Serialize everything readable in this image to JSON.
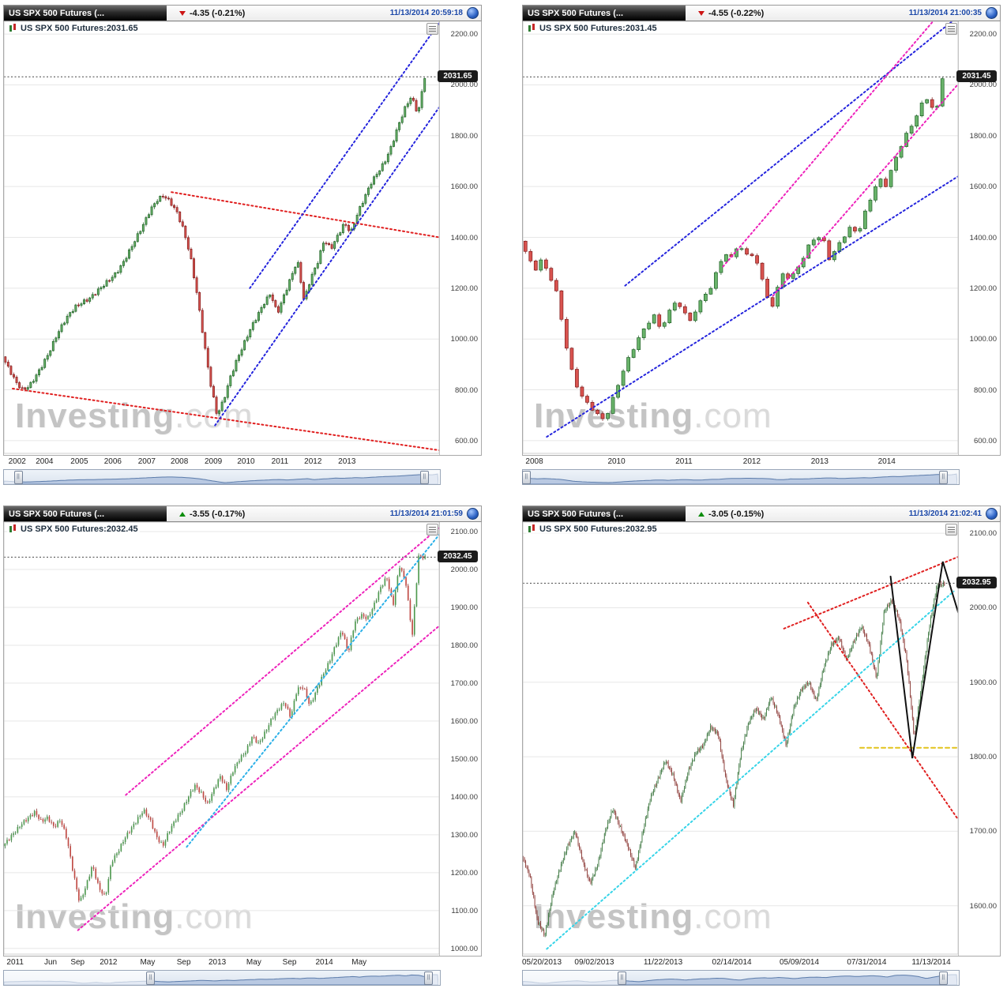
{
  "brand": {
    "watermark_main": "Investing",
    "watermark_suffix": ".com"
  },
  "icons": {
    "globe": "globe-icon",
    "change_up": "triangle-up-icon",
    "change_down": "triangle-down-icon",
    "legend_candles": "candlestick-icon",
    "chart_menu": "chart-menu-icon",
    "nav_handles": "navigator-handle-icon"
  },
  "panels": [
    {
      "title": "US SPX 500 Futures (...",
      "change": "-4.35 (-0.21%)",
      "change_dir": "down",
      "timestamp": "11/13/2014 20:59:18",
      "legend": "US SPX 500 Futures:2031.65",
      "price_tag": "2031.65"
    },
    {
      "title": "US SPX 500 Futures (...",
      "change": "-4.55 (-0.22%)",
      "change_dir": "down",
      "timestamp": "11/13/2014 21:00:35",
      "legend": "US SPX 500 Futures:2031.45",
      "price_tag": "2031.45"
    },
    {
      "title": "US SPX 500 Futures (...",
      "change": "-3.55 (-0.17%)",
      "change_dir": "up",
      "timestamp": "11/13/2014 21:01:59",
      "legend": "US SPX 500 Futures:2032.45",
      "price_tag": "2032.45"
    },
    {
      "title": "US SPX 500 Futures (...",
      "change": "-3.05 (-0.15%)",
      "change_dir": "up",
      "timestamp": "11/13/2014 21:02:41",
      "legend": "US SPX 500 Futures:2032.95",
      "price_tag": "2032.95"
    }
  ],
  "chart_data": [
    {
      "type": "candlestick",
      "series_name": "US SPX 500 Futures",
      "price": 2031.65,
      "domain": [
        550,
        2250
      ],
      "y_ticks": [
        600,
        800,
        1000,
        1200,
        1400,
        1600,
        1800,
        2000,
        2200
      ],
      "x_labels": [
        {
          "text": "2002",
          "pos": 0.012,
          "align": "left"
        },
        {
          "text": "2004",
          "pos": 0.095
        },
        {
          "text": "2005",
          "pos": 0.175
        },
        {
          "text": "2006",
          "pos": 0.252
        },
        {
          "text": "2007",
          "pos": 0.33
        },
        {
          "text": "2008",
          "pos": 0.405
        },
        {
          "text": "2009",
          "pos": 0.483
        },
        {
          "text": "2010",
          "pos": 0.558
        },
        {
          "text": "2011",
          "pos": 0.636
        },
        {
          "text": "2012",
          "pos": 0.712
        },
        {
          "text": "2013",
          "pos": 0.79
        }
      ],
      "close": [
        930,
        880,
        830,
        800,
        815,
        855,
        900,
        950,
        1010,
        1060,
        1100,
        1130,
        1145,
        1160,
        1185,
        1210,
        1235,
        1260,
        1300,
        1350,
        1400,
        1450,
        1505,
        1545,
        1565,
        1540,
        1500,
        1430,
        1330,
        1180,
        1000,
        830,
        700,
        760,
        850,
        920,
        980,
        1040,
        1090,
        1140,
        1180,
        1100,
        1170,
        1240,
        1310,
        1150,
        1240,
        1300,
        1390,
        1355,
        1405,
        1455,
        1420,
        1495,
        1555,
        1615,
        1655,
        1695,
        1755,
        1835,
        1905,
        1955,
        1885,
        2032
      ],
      "candle_count": 150,
      "up_color": "#69b36a",
      "down_color": "#d9534f",
      "trendlines": [
        {
          "name": "descending-resistance",
          "color": "#e01f1f",
          "style": "dotted",
          "points": [
            [
              0.385,
              1578
            ],
            [
              1.07,
              1380
            ]
          ]
        },
        {
          "name": "descending-support",
          "color": "#e01f1f",
          "style": "dotted",
          "points": [
            [
              0.02,
              805
            ],
            [
              1.07,
              545
            ]
          ]
        },
        {
          "name": "rising-channel-upper",
          "color": "#2424dd",
          "style": "dotted",
          "points": [
            [
              0.565,
              1200
            ],
            [
              1.005,
              2255
            ]
          ]
        },
        {
          "name": "rising-channel-lower",
          "color": "#2424dd",
          "style": "dotted",
          "points": [
            [
              0.485,
              660
            ],
            [
              1.02,
              1960
            ]
          ]
        }
      ],
      "nav_range": [
        0.03,
        0.965
      ]
    },
    {
      "type": "candlestick",
      "series_name": "US SPX 500 Futures",
      "price": 2031.45,
      "domain": [
        550,
        2250
      ],
      "y_ticks": [
        600,
        800,
        1000,
        1200,
        1400,
        1600,
        1800,
        2000,
        2200
      ],
      "x_labels": [
        {
          "text": "2008",
          "pos": 0.008,
          "align": "left"
        },
        {
          "text": "2010",
          "pos": 0.217
        },
        {
          "text": "2011",
          "pos": 0.372
        },
        {
          "text": "2012",
          "pos": 0.528
        },
        {
          "text": "2013",
          "pos": 0.684
        },
        {
          "text": "2014",
          "pos": 0.838
        }
      ],
      "close": [
        1385,
        1330,
        1270,
        1310,
        1260,
        1200,
        1060,
        900,
        820,
        760,
        735,
        700,
        682,
        750,
        830,
        900,
        960,
        1010,
        1060,
        1090,
        1040,
        1095,
        1150,
        1115,
        1075,
        1105,
        1180,
        1185,
        1285,
        1325,
        1330,
        1360,
        1345,
        1320,
        1290,
        1160,
        1130,
        1255,
        1245,
        1255,
        1310,
        1365,
        1405,
        1395,
        1310,
        1360,
        1405,
        1440,
        1415,
        1495,
        1570,
        1630,
        1605,
        1685,
        1755,
        1810,
        1860,
        1920,
        1955,
        1870,
        2031
      ],
      "candle_count": 82,
      "up_color": "#69b36a",
      "down_color": "#d9534f",
      "trendlines": [
        {
          "name": "rising-channel-upper-blue",
          "color": "#2424dd",
          "style": "dotted",
          "points": [
            [
              0.235,
              1210
            ],
            [
              0.99,
              2255
            ]
          ]
        },
        {
          "name": "rising-channel-lower-blue",
          "color": "#2424dd",
          "style": "dotted",
          "points": [
            [
              0.055,
              615
            ],
            [
              1.06,
              1705
            ]
          ]
        },
        {
          "name": "rising-channel-upper-magenta",
          "color": "#ee22bb",
          "style": "dotted",
          "points": [
            [
              0.46,
              1285
            ],
            [
              0.945,
              2255
            ]
          ]
        },
        {
          "name": "rising-channel-lower-magenta",
          "color": "#ee22bb",
          "style": "dotted",
          "points": [
            [
              0.575,
              1170
            ],
            [
              1.06,
              2120
            ]
          ]
        }
      ],
      "nav_range": [
        0.005,
        0.965
      ]
    },
    {
      "type": "candlestick",
      "series_name": "US SPX 500 Futures",
      "price": 2032.45,
      "domain": [
        985,
        2125
      ],
      "y_ticks": [
        1000,
        1100,
        1200,
        1300,
        1400,
        1500,
        1600,
        1700,
        1800,
        1900,
        2000,
        2100
      ],
      "x_labels": [
        {
          "text": "2011",
          "pos": 0.008,
          "align": "left"
        },
        {
          "text": "Jun",
          "pos": 0.109
        },
        {
          "text": "Sep",
          "pos": 0.171
        },
        {
          "text": "2012",
          "pos": 0.242
        },
        {
          "text": "May",
          "pos": 0.332
        },
        {
          "text": "Sep",
          "pos": 0.415
        },
        {
          "text": "2013",
          "pos": 0.492
        },
        {
          "text": "May",
          "pos": 0.576
        },
        {
          "text": "Sep",
          "pos": 0.658
        },
        {
          "text": "2014",
          "pos": 0.738
        },
        {
          "text": "May",
          "pos": 0.818
        }
      ],
      "close": [
        1270,
        1290,
        1310,
        1330,
        1345,
        1360,
        1335,
        1345,
        1320,
        1340,
        1290,
        1200,
        1120,
        1165,
        1220,
        1160,
        1135,
        1230,
        1255,
        1290,
        1315,
        1340,
        1365,
        1340,
        1295,
        1270,
        1310,
        1340,
        1365,
        1400,
        1430,
        1410,
        1380,
        1420,
        1455,
        1420,
        1470,
        1500,
        1520,
        1560,
        1540,
        1570,
        1605,
        1630,
        1650,
        1610,
        1685,
        1690,
        1640,
        1680,
        1720,
        1755,
        1800,
        1840,
        1780,
        1860,
        1880,
        1870,
        1905,
        1950,
        1980,
        1905,
        2010,
        1965,
        1825,
        2035,
        2032
      ],
      "candle_count": 200,
      "up_color": "#4f9a50",
      "down_color": "#c04a44",
      "trendlines": [
        {
          "name": "rising-channel-upper-magenta",
          "color": "#ee22bb",
          "style": "dotted",
          "points": [
            [
              0.28,
              1405
            ],
            [
              1.03,
              2140
            ]
          ]
        },
        {
          "name": "rising-channel-lower-magenta",
          "color": "#ee22bb",
          "style": "dotted",
          "points": [
            [
              0.17,
              1048
            ],
            [
              1.03,
              1880
            ]
          ]
        },
        {
          "name": "rising-trendline-cyan",
          "color": "#2ab0e8",
          "style": "dotted",
          "points": [
            [
              0.42,
              1268
            ],
            [
              1.02,
              2120
            ]
          ]
        }
      ],
      "nav_range": [
        0.335,
        0.975
      ]
    },
    {
      "type": "candlestick",
      "series_name": "US SPX 500 Futures",
      "price": 2032.95,
      "domain": [
        1535,
        2115
      ],
      "y_ticks": [
        1600,
        1700,
        1800,
        1900,
        2000,
        2100
      ],
      "x_labels": [
        {
          "text": "05/20/2013",
          "pos": 0.0,
          "align": "left"
        },
        {
          "text": "09/02/2013",
          "pos": 0.166
        },
        {
          "text": "11/22/2013",
          "pos": 0.324
        },
        {
          "text": "02/14/2014",
          "pos": 0.482
        },
        {
          "text": "05/09/2014",
          "pos": 0.637
        },
        {
          "text": "07/31/2014",
          "pos": 0.792
        },
        {
          "text": "11/13/2014",
          "pos": 0.985,
          "align": "right"
        }
      ],
      "close": [
        1666,
        1640,
        1580,
        1560,
        1615,
        1650,
        1680,
        1700,
        1660,
        1630,
        1655,
        1700,
        1730,
        1705,
        1680,
        1650,
        1700,
        1745,
        1770,
        1795,
        1775,
        1740,
        1780,
        1805,
        1815,
        1840,
        1830,
        1770,
        1735,
        1805,
        1845,
        1865,
        1850,
        1880,
        1855,
        1815,
        1865,
        1890,
        1900,
        1875,
        1920,
        1950,
        1960,
        1930,
        1955,
        1975,
        1950,
        1905,
        1995,
        2010,
        1985,
        1930,
        1825,
        1900,
        1975,
        2030,
        2032
      ],
      "candle_count": 370,
      "up_color": "#3f7a40",
      "down_color": "#8a3a34",
      "trendlines": [
        {
          "name": "rising-resistance-red",
          "color": "#e01f1f",
          "style": "dotted",
          "points": [
            [
              0.6,
              1972
            ],
            [
              1.09,
              2090
            ]
          ]
        },
        {
          "name": "falling-trendline-red",
          "color": "#e01f1f",
          "style": "dotted",
          "points": [
            [
              0.655,
              2007
            ],
            [
              1.09,
              1640
            ]
          ]
        },
        {
          "name": "rising-support-cyan",
          "color": "#35d4e8",
          "style": "dotted",
          "points": [
            [
              0.055,
              1542
            ],
            [
              0.99,
              2022
            ]
          ]
        },
        {
          "name": "horizontal-support-yellow",
          "color": "#e2c31d",
          "style": "dash",
          "points": [
            [
              0.775,
              1812
            ],
            [
              1.09,
              1812
            ]
          ]
        },
        {
          "name": "projection-zigzag-black",
          "color": "#111111",
          "style": "solid",
          "points": [
            [
              0.845,
              2042
            ],
            [
              0.895,
              1798
            ],
            [
              0.965,
              2062
            ],
            [
              1.08,
              1840
            ]
          ]
        }
      ],
      "nav_range": [
        0.225,
        0.965
      ]
    }
  ]
}
